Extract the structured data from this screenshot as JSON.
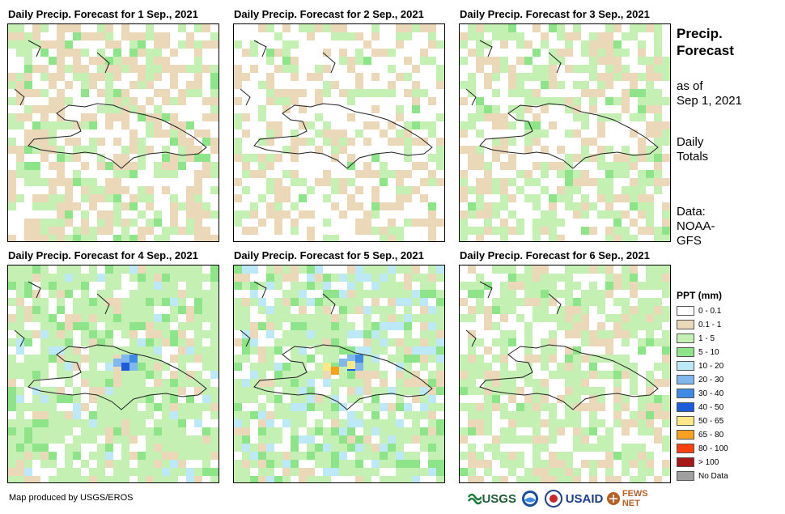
{
  "panels": [
    {
      "title": "Daily Precip. Forecast for 1 Sep., 2021"
    },
    {
      "title": "Daily Precip. Forecast for 2 Sep., 2021"
    },
    {
      "title": "Daily Precip. Forecast for 3 Sep., 2021"
    },
    {
      "title": "Daily Precip. Forecast for 4 Sep., 2021"
    },
    {
      "title": "Daily Precip. Forecast for 5 Sep., 2021"
    },
    {
      "title": "Daily Precip. Forecast for 6 Sep., 2021"
    }
  ],
  "side": {
    "title_line1": "Precip.",
    "title_line2": "Forecast",
    "asof_line1": "as of",
    "asof_line2": "Sep 1, 2021",
    "totals_line1": "Daily",
    "totals_line2": "Totals",
    "data_line1": "Data:",
    "data_line2": "NOAA-",
    "data_line3": "GFS"
  },
  "legend": {
    "title": "PPT (mm)",
    "items": [
      {
        "label": "0 - 0.1",
        "color": "#ffffff"
      },
      {
        "label": "0.1 - 1",
        "color": "#ead8b9"
      },
      {
        "label": "1 - 5",
        "color": "#c4f0b4"
      },
      {
        "label": "5 - 10",
        "color": "#8ee488"
      },
      {
        "label": "10 - 20",
        "color": "#bde8f6"
      },
      {
        "label": "20 - 30",
        "color": "#80b8ee"
      },
      {
        "label": "30 - 40",
        "color": "#3e8ae4"
      },
      {
        "label": "40 - 50",
        "color": "#1c5cd8"
      },
      {
        "label": "50 - 65",
        "color": "#fce888"
      },
      {
        "label": "65 - 80",
        "color": "#f8a020"
      },
      {
        "label": "80 - 100",
        "color": "#f84010"
      },
      {
        "label": "> 100",
        "color": "#a81818"
      },
      {
        "label": "No Data",
        "color": "#a0a0a0"
      }
    ]
  },
  "credit": "Map produced by USGS/EROS",
  "logos": {
    "usgs": "USGS",
    "usaid": "USAID",
    "fewsnet": "FEWS NET"
  },
  "icons": [
    "usgs-logo-icon",
    "noaa-logo-icon",
    "usaid-seal-icon",
    "fewsnet-logo-icon"
  ]
}
